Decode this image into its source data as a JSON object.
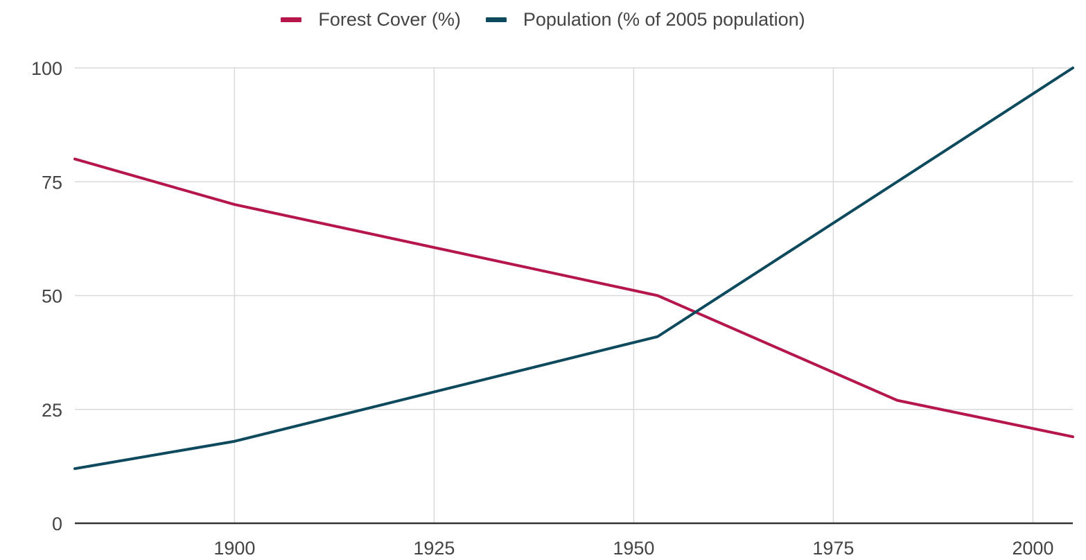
{
  "chart_data": {
    "type": "line",
    "title": "",
    "xlabel": "",
    "ylabel": "",
    "xlim": [
      1880,
      2005
    ],
    "ylim": [
      0,
      100
    ],
    "x_ticks": [
      1900,
      1925,
      1950,
      1975,
      2000
    ],
    "y_ticks": [
      0,
      25,
      50,
      75,
      100
    ],
    "grid": true,
    "legend_position": "top",
    "series": [
      {
        "name": "Forest Cover (%)",
        "color": "#b5174b",
        "x": [
          1880,
          1900,
          1953,
          1983,
          2005
        ],
        "y": [
          80,
          70,
          50,
          27,
          19
        ]
      },
      {
        "name": "Population (% of 2005 population)",
        "color": "#0e4a5e",
        "x": [
          1880,
          1900,
          1953,
          1983,
          2005
        ],
        "y": [
          12,
          18,
          41,
          75,
          100
        ]
      }
    ]
  }
}
